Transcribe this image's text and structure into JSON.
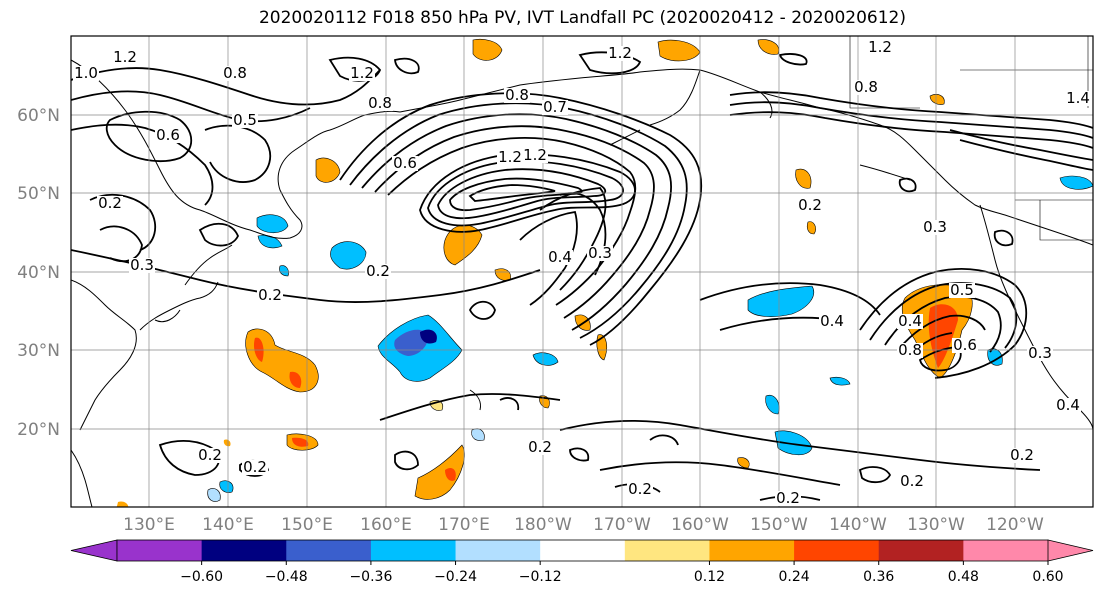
{
  "title": "2020020112 F018 850 hPa PV, IVT Landfall PC (2020020412 - 2020020612)",
  "lat_labels": [
    "60°N",
    "50°N",
    "40°N",
    "30°N",
    "20°N"
  ],
  "lon_labels": [
    "130°E",
    "140°E",
    "150°E",
    "160°E",
    "170°E",
    "180°W",
    "170°W",
    "160°W",
    "150°W",
    "140°W",
    "130°W",
    "120°W"
  ],
  "colorbar": {
    "colors": [
      "#9933cc",
      "#000080",
      "#3a5fcd",
      "#00bfff",
      "#b2dfff",
      "#ffffff",
      "#ffe680",
      "#ffa500",
      "#ff4500",
      "#b22222",
      "#ff88aa"
    ],
    "tick_labels": [
      "−0.60",
      "−0.48",
      "−0.36",
      "−0.24",
      "−0.12",
      "0.12",
      "0.24",
      "0.36",
      "0.48",
      "0.60"
    ]
  },
  "contour_labels": [
    "1.0",
    "1.2",
    "0.8",
    "0.5",
    "0.6",
    "0.2",
    "0.3",
    "0.2",
    "1.2",
    "0.8",
    "1.2",
    "0.7",
    "0.4",
    "0.3",
    "0.2",
    "0.2",
    "0.4",
    "0.4",
    "0.5",
    "0.8",
    "0.6",
    "0.3",
    "0.2",
    "0.2",
    "0.2",
    "0.3",
    "0.2",
    "1.4",
    "1.2",
    "0.8",
    "0.2",
    "0.4",
    "0.2",
    "0.2",
    "0.6",
    "1.2",
    "1.2",
    "0.8"
  ]
}
